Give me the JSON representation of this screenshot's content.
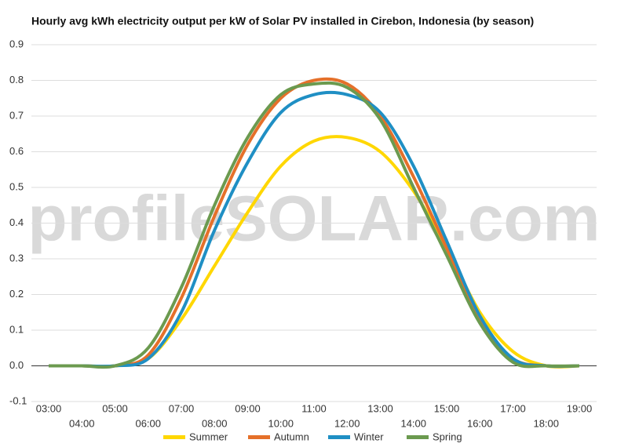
{
  "chart_data": {
    "type": "line",
    "title": "Hourly avg kWh electricity output per kW of Solar PV installed in Cirebon, Indonesia (by season)",
    "watermark": "profileSOLAR.com",
    "categories": [
      "03:00",
      "04:00",
      "05:00",
      "06:00",
      "07:00",
      "08:00",
      "09:00",
      "10:00",
      "11:00",
      "12:00",
      "13:00",
      "14:00",
      "15:00",
      "16:00",
      "17:00",
      "18:00",
      "19:00"
    ],
    "series": [
      {
        "name": "Summer",
        "color": "#ffd700",
        "values": [
          0,
          0,
          0,
          0.02,
          0.13,
          0.28,
          0.43,
          0.56,
          0.63,
          0.64,
          0.6,
          0.49,
          0.33,
          0.15,
          0.04,
          0,
          0
        ]
      },
      {
        "name": "Autumn",
        "color": "#e5702a",
        "values": [
          0,
          0,
          0,
          0.03,
          0.19,
          0.42,
          0.62,
          0.75,
          0.8,
          0.79,
          0.7,
          0.53,
          0.33,
          0.13,
          0.02,
          0,
          0
        ]
      },
      {
        "name": "Winter",
        "color": "#1f8fc4",
        "values": [
          0,
          0,
          0,
          0.02,
          0.15,
          0.38,
          0.57,
          0.71,
          0.76,
          0.76,
          0.71,
          0.56,
          0.35,
          0.14,
          0.02,
          0,
          0
        ]
      },
      {
        "name": "Spring",
        "color": "#6b9a4f",
        "values": [
          0,
          0,
          0,
          0.05,
          0.22,
          0.45,
          0.64,
          0.76,
          0.79,
          0.78,
          0.69,
          0.5,
          0.31,
          0.12,
          0.01,
          0,
          0
        ]
      }
    ],
    "ylim": [
      -0.1,
      0.9
    ],
    "yticks": [
      -0.1,
      {
        "value": 0,
        "label": "0.0"
      },
      0.1,
      0.2,
      0.3,
      0.4,
      0.5,
      0.6,
      0.7,
      0.8,
      0.9
    ],
    "grid": true,
    "legend": "bottom"
  }
}
